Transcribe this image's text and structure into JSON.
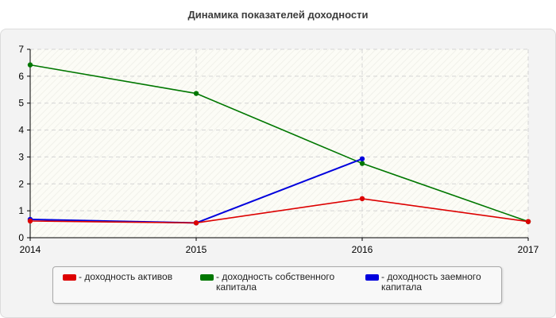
{
  "chart_data": {
    "type": "line",
    "title": "Динамика показателей доходности",
    "x": [
      "2014",
      "2015",
      "2016",
      "2017"
    ],
    "ylim": [
      0,
      7
    ],
    "yticks": [
      0,
      1,
      2,
      3,
      4,
      5,
      6,
      7
    ],
    "grid": true,
    "legend_position": "bottom",
    "series": [
      {
        "name": "- доходность активов",
        "color": "#dd0000",
        "values": [
          0.62,
          0.55,
          1.45,
          0.6
        ]
      },
      {
        "name": "- доходность собственного капитала",
        "color": "#007700",
        "values": [
          6.42,
          5.36,
          2.76,
          0.6
        ]
      },
      {
        "name": "- доходность заемного капитала",
        "color": "#0000dd",
        "values": [
          0.68,
          0.55,
          2.93,
          null
        ]
      }
    ]
  }
}
